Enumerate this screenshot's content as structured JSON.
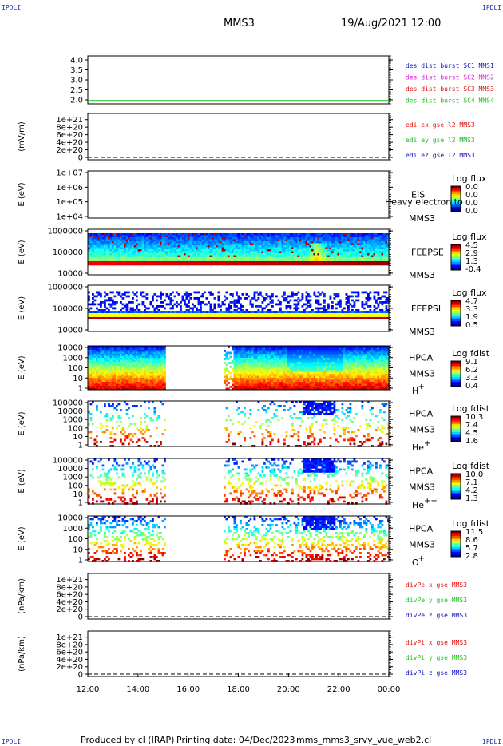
{
  "corner_label": "IPDLI",
  "header": {
    "spacecraft": "MMS3",
    "datetime": "19/Aug/2021 12:00"
  },
  "footer": {
    "produced_by": "Produced by cl (IRAP)",
    "printing_date": "Printing date: 04/Dec/2023",
    "filename": "mms_mms3_srvy_vue_web2.cl"
  },
  "colors": {
    "magenta": "#e020e0",
    "red": "#e01010",
    "green": "#20c020",
    "blue": "#1010c0",
    "background": "#ffffff",
    "axis": "#000000"
  },
  "chart_data": {
    "type": "heatmap",
    "time_axis": {
      "ticks": [
        "12:00",
        "14:00",
        "16:00",
        "18:00",
        "20:00",
        "22:00",
        "00:00"
      ],
      "range_hours": [
        12,
        24
      ]
    },
    "panels": [
      {
        "id": "p1",
        "type": "line",
        "ylabel": "",
        "yticks": [
          "4.0",
          "3.5",
          "3.0",
          "2.5",
          "2.0"
        ],
        "ylim": [
          1.8,
          4.2
        ],
        "legend": [
          {
            "text": "des dist burst SC1 MMS1",
            "color": "#1010c0"
          },
          {
            "text": "des dist burst SC2 MMS2",
            "color": "#e020e0"
          },
          {
            "text": "des dist burst SC3 MMS3",
            "color": "#e01010"
          },
          {
            "text": "des dist burst SC4 MMS4",
            "color": "#20c020"
          }
        ],
        "series": [
          {
            "name": "des dist burst SC4 MMS4",
            "color": "#20c020",
            "x": [
              12,
              24
            ],
            "y": [
              1.95,
              1.95
            ]
          }
        ]
      },
      {
        "id": "p2",
        "type": "line",
        "ylabel": "(mV/m)",
        "yticks": [
          "1e+21",
          "8e+20",
          "6e+20",
          "4e+20",
          "2e+20",
          "0"
        ],
        "ylim": [
          0,
          1.1e+21
        ],
        "legend": [
          {
            "text": "edi ex gse l2 MMS3",
            "color": "#e01010"
          },
          {
            "text": "edi ey gse l2 MMS3",
            "color": "#20c020"
          },
          {
            "text": "edi ez gse l2 MMS3",
            "color": "#1010c0"
          }
        ],
        "dashed_zero": true
      },
      {
        "id": "p3",
        "type": "heatmap",
        "ylabel": "E (eV)",
        "yticks": [
          "1e+07",
          "1e+06",
          "1e+05",
          "1e+04"
        ],
        "ylim_log": [
          4,
          7
        ],
        "instrument": [
          "EIS",
          "MMS3"
        ],
        "overlap_text": "Heavy electron to",
        "colorbar": {
          "title": "Log flux",
          "values": [
            "0.0",
            "0.0",
            "0.0",
            "0.0"
          ]
        }
      },
      {
        "id": "p4",
        "type": "heatmap",
        "ylabel": "E (eV)",
        "yticks": [
          "1000000",
          "100000",
          "10000"
        ],
        "ylim_log": [
          4,
          6
        ],
        "instrument": [
          "FEEPSE",
          "MMS3"
        ],
        "colorbar": {
          "title": "Log flux",
          "values": [
            "4.5",
            "2.9",
            "1.3",
            "-0.4"
          ]
        }
      },
      {
        "id": "p5",
        "type": "heatmap",
        "ylabel": "E (eV)",
        "yticks": [
          "1000000",
          "100000",
          "10000"
        ],
        "ylim_log": [
          4,
          6
        ],
        "instrument": [
          "FEEPSI",
          "MMS3"
        ],
        "colorbar": {
          "title": "Log flux",
          "values": [
            "4.7",
            "3.3",
            "1.9",
            "0.5"
          ]
        }
      },
      {
        "id": "p6",
        "type": "heatmap",
        "ylabel": "E (eV)",
        "yticks": [
          "10000",
          "1000",
          "100",
          "10",
          "1"
        ],
        "ylim_log": [
          0,
          4.2
        ],
        "instrument": [
          "HPCA",
          "MMS3",
          "H",
          "+"
        ],
        "colorbar": {
          "title": "Log fdist",
          "values": [
            "9.1",
            "6.2",
            "3.3",
            "0.4"
          ]
        },
        "data_gap_hours": [
          15.1,
          17.4
        ]
      },
      {
        "id": "p7",
        "type": "heatmap",
        "ylabel": "E (eV)",
        "yticks": [
          "100000",
          "10000",
          "1000",
          "100",
          "10",
          "1"
        ],
        "ylim_log": [
          0,
          5
        ],
        "instrument": [
          "HPCA",
          "MMS3",
          "He",
          "+"
        ],
        "colorbar": {
          "title": "Log fdist",
          "values": [
            "10.3",
            "7.4",
            "4.5",
            "1.6"
          ]
        },
        "data_gap_hours": [
          15.1,
          17.4
        ]
      },
      {
        "id": "p8",
        "type": "heatmap",
        "ylabel": "E (eV)",
        "yticks": [
          "100000",
          "10000",
          "1000",
          "100",
          "10",
          "1"
        ],
        "ylim_log": [
          0,
          5
        ],
        "instrument": [
          "HPCA",
          "MMS3",
          "He",
          "++"
        ],
        "colorbar": {
          "title": "Log fdist",
          "values": [
            "10.0",
            "7.1",
            "4.2",
            "1.3"
          ]
        },
        "data_gap_hours": [
          15.1,
          17.4
        ]
      },
      {
        "id": "p9",
        "type": "heatmap",
        "ylabel": "E (eV)",
        "yticks": [
          "10000",
          "1000",
          "100",
          "10",
          "1"
        ],
        "ylim_log": [
          0,
          4.2
        ],
        "instrument": [
          "HPCA",
          "MMS3",
          "O",
          "+"
        ],
        "colorbar": {
          "title": "Log fdist",
          "values": [
            "11.5",
            "8.6",
            "5.7",
            "2.8"
          ]
        },
        "data_gap_hours": [
          15.1,
          17.4
        ]
      },
      {
        "id": "p10",
        "type": "line",
        "ylabel": "(nPa/km)",
        "yticks": [
          "1e+21",
          "8e+20",
          "6e+20",
          "4e+20",
          "2e+20",
          "0"
        ],
        "ylim": [
          0,
          1.1e+21
        ],
        "legend": [
          {
            "text": "divPe x gse MMS3",
            "color": "#e01010"
          },
          {
            "text": "divPe y gse MMS3",
            "color": "#20c020"
          },
          {
            "text": "divPe z gse MMS3",
            "color": "#1010c0"
          }
        ],
        "dashed_zero": true
      },
      {
        "id": "p11",
        "type": "line",
        "ylabel": "(nPa/km)",
        "yticks": [
          "1e+21",
          "8e+20",
          "6e+20",
          "4e+20",
          "2e+20",
          "0"
        ],
        "ylim": [
          0,
          1.1e+21
        ],
        "legend": [
          {
            "text": "divPi x gse MMS3",
            "color": "#e01010"
          },
          {
            "text": "divPi y gse MMS3",
            "color": "#20c020"
          },
          {
            "text": "divPi z gse MMS3",
            "color": "#1010c0"
          }
        ],
        "dashed_zero": true
      }
    ]
  }
}
